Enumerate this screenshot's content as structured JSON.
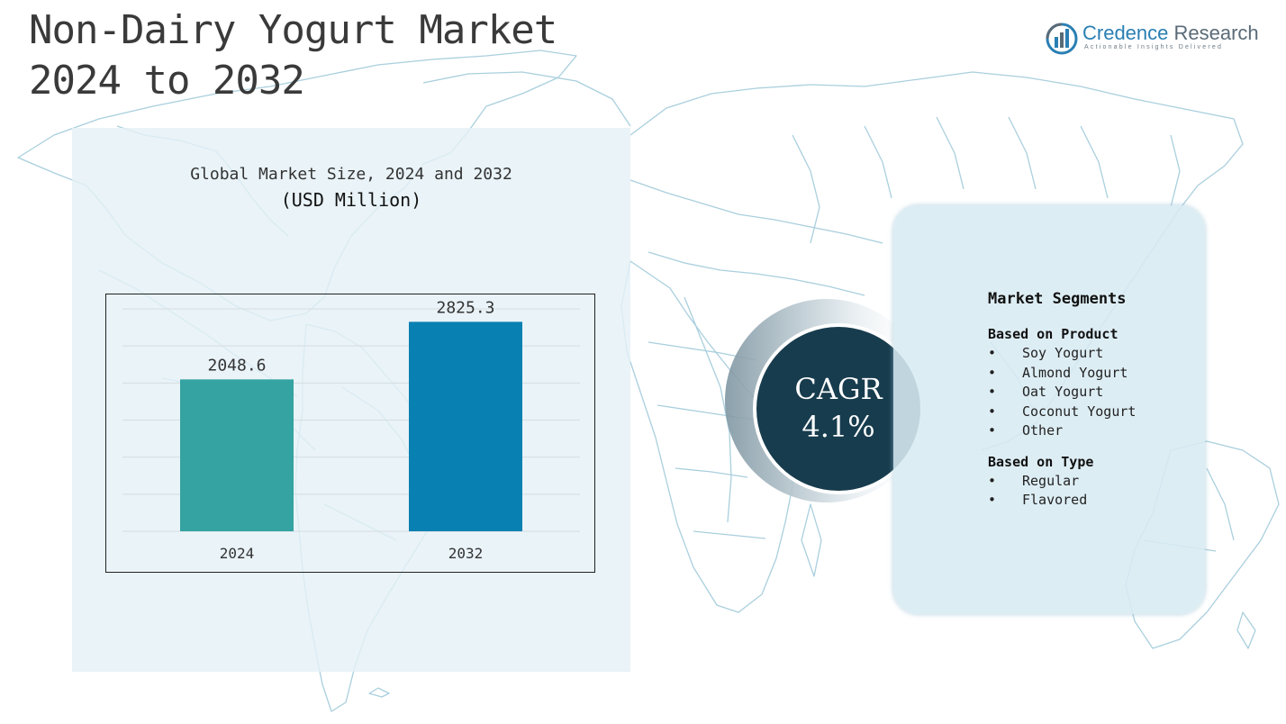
{
  "title": {
    "line1": "Non-Dairy Yogurt Market",
    "line2": "2024 to 2032"
  },
  "logo": {
    "name_part1": "Credence",
    "name_part2": "Research",
    "tagline": "Actionable Insights Delivered",
    "icon": "bar-chart-icon"
  },
  "chart_data": {
    "type": "bar",
    "title": "Global Market Size, 2024 and 2032",
    "subtitle": "(USD Million)",
    "categories": [
      "2024",
      "2032"
    ],
    "values": [
      2048.6,
      2825.3
    ],
    "value_labels": [
      "2048.6",
      "2825.3"
    ],
    "colors": [
      "#34a3a1",
      "#0980b2"
    ],
    "ylim": [
      0,
      3000
    ],
    "grid": true
  },
  "cagr": {
    "label": "CAGR",
    "value": "4.1%"
  },
  "segments": {
    "title": "Market Segments",
    "groups": [
      {
        "title": "Based on Product",
        "items": [
          "Soy Yogurt",
          "Almond Yogurt",
          "Oat Yogurt",
          "Coconut Yogurt",
          "Other"
        ]
      },
      {
        "title": "Based on Type",
        "items": [
          "Regular",
          "Flavored"
        ]
      }
    ],
    "bullet": "•"
  },
  "colors": {
    "map_stroke": "#a9cfdd",
    "panel_bg": "#e4f0f7",
    "cagr_circle": "#173c4e",
    "logo_accent": "#2a7fb3"
  }
}
